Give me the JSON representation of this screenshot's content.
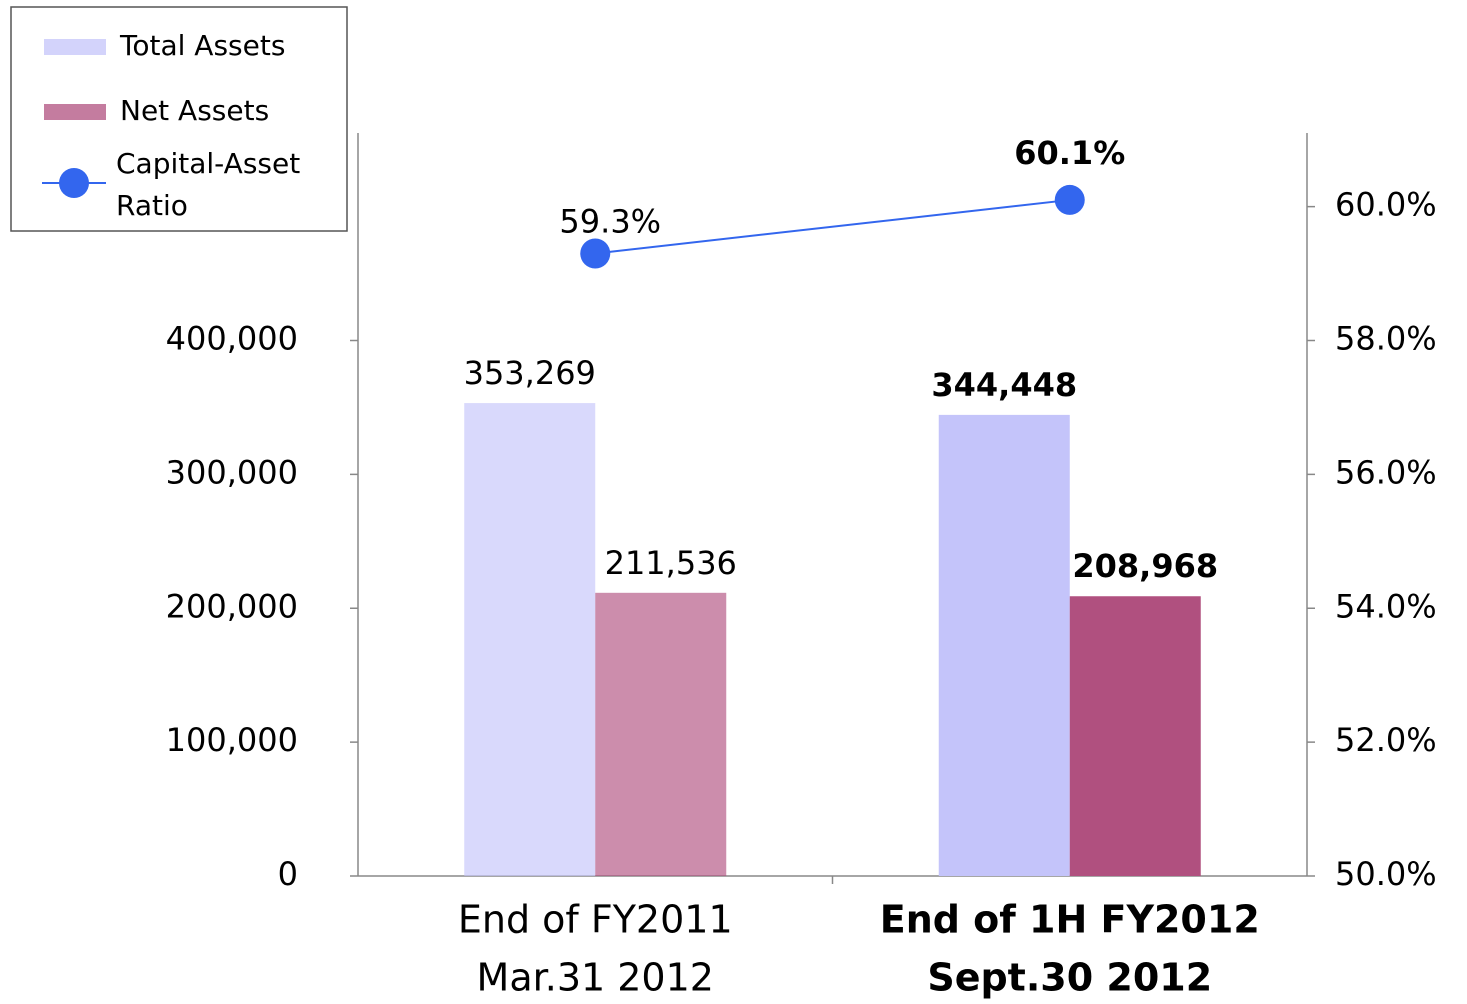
{
  "chart_data": {
    "type": "bar",
    "categories": [
      [
        "End of FY2011",
        "Mar.31 2012"
      ],
      [
        "End of 1H FY2012",
        "Sept.30 2012"
      ]
    ],
    "series": [
      {
        "name": "Total Assets",
        "color": "#c4c4fa",
        "values": [
          353269,
          344448
        ],
        "value_labels": [
          "353,269",
          "344,448"
        ]
      },
      {
        "name": "Net Assets",
        "color": "#b0507f",
        "values": [
          211536,
          208968
        ],
        "value_labels": [
          "211,536",
          "208,968"
        ]
      },
      {
        "name": "Capital-Asset Ratio",
        "type": "line",
        "axis": "y2",
        "color": "#3366ee",
        "values": [
          59.3,
          60.1
        ],
        "value_labels": [
          "59.3%",
          "60.1%"
        ]
      }
    ],
    "ylim": [
      0,
      555000
    ],
    "yticks": [
      0,
      {
        "value": 100000,
        "label": "100,000"
      },
      {
        "value": 200000,
        "label": "200,000"
      },
      {
        "value": 300000,
        "label": "300,000"
      },
      {
        "value": 400000,
        "label": "400,000"
      }
    ],
    "y2lim": [
      50,
      61.1
    ],
    "y2ticks": [
      {
        "value": 50,
        "label": "50.0%"
      },
      {
        "value": 52,
        "label": "52.0%"
      },
      {
        "value": 54,
        "label": "54.0%"
      },
      {
        "value": 56,
        "label": "56.0%"
      },
      {
        "value": 58,
        "label": "58.0%"
      },
      {
        "value": 60,
        "label": "60.0%"
      }
    ],
    "legend": "top-left"
  }
}
